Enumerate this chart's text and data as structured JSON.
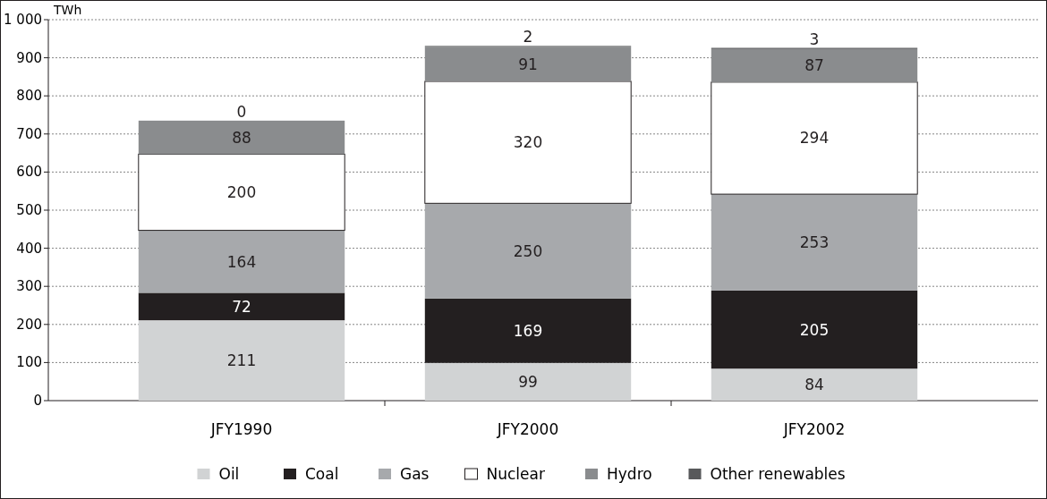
{
  "chart_data": {
    "type": "bar",
    "stacked": true,
    "ylabel": "TWh",
    "categories": [
      "JFY1990",
      "JFY2000",
      "JFY2002"
    ],
    "series": [
      {
        "name": "Oil",
        "color": "#d1d3d4",
        "values": [
          211,
          99,
          84
        ]
      },
      {
        "name": "Coal",
        "color": "#231f20",
        "values": [
          72,
          169,
          205
        ]
      },
      {
        "name": "Gas",
        "color": "#a7a9ac",
        "values": [
          164,
          250,
          253
        ]
      },
      {
        "name": "Nuclear",
        "color": "#ffffff",
        "values": [
          200,
          320,
          294
        ]
      },
      {
        "name": "Hydro",
        "color": "#8a8c8e",
        "values": [
          88,
          91,
          87
        ]
      },
      {
        "name": "Other renewables",
        "color": "#58595b",
        "values": [
          0,
          2,
          3
        ]
      }
    ],
    "ylim": [
      0,
      1000
    ],
    "yticks": [
      0,
      100,
      200,
      300,
      400,
      500,
      600,
      700,
      800,
      900,
      {
        "value": 1000,
        "label": "1 000"
      }
    ],
    "grid": "y",
    "legend": "bottom",
    "data_labels": true
  }
}
